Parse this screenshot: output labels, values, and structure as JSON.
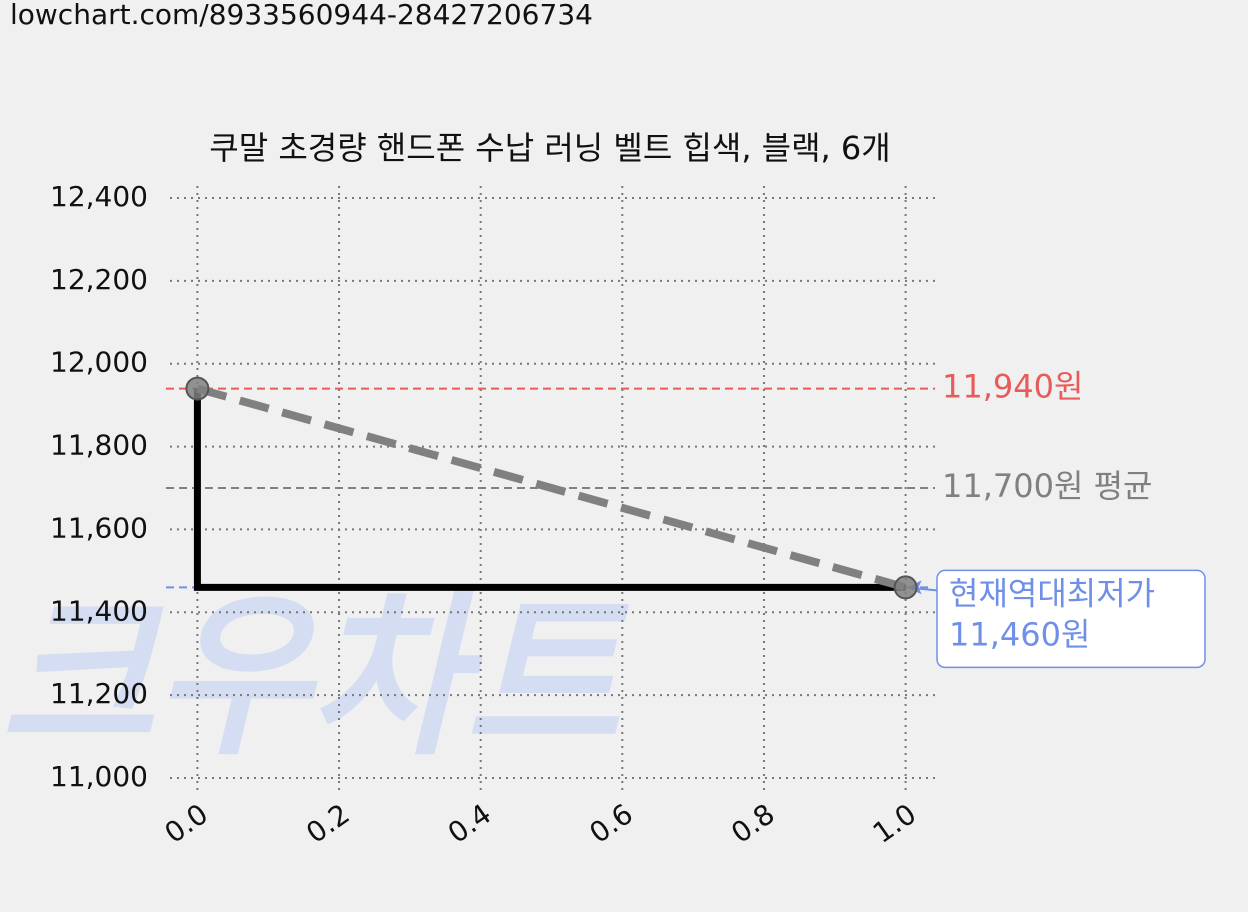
{
  "url": "lowchart.com/8933560944-28427206734",
  "chart_data": {
    "type": "line",
    "title": "쿠말 초경량 핸드폰 수납 러닝 벨트 힙색, 블랙, 6개",
    "watermark": "크우차트",
    "xlim": [
      -0.05,
      1.05
    ],
    "xticks": [
      {
        "value": 0,
        "label": "0.0"
      },
      0.2,
      0.4,
      0.6,
      0.8,
      {
        "value": 1,
        "label": "1.0"
      }
    ],
    "ylim": [
      11000,
      12400
    ],
    "yticks": [
      {
        "value": 11000,
        "label": "11,000"
      },
      {
        "value": 11200,
        "label": "11,200"
      },
      {
        "value": 11400,
        "label": "11,400"
      },
      {
        "value": 11600,
        "label": "11,600"
      },
      {
        "value": 11800,
        "label": "11,800"
      },
      {
        "value": 12000,
        "label": "12,000"
      },
      {
        "value": 12200,
        "label": "12,200"
      },
      {
        "value": 12400,
        "label": "12,400"
      }
    ],
    "grid": true,
    "series": [
      {
        "color": "#000000",
        "style": "solid",
        "markers": false,
        "x": [
          0,
          0,
          1
        ],
        "values": [
          11940,
          11460,
          11460
        ]
      },
      {
        "color": "#808080",
        "style": "dashed",
        "markers": true,
        "x": [
          0,
          1
        ],
        "values": [
          11940,
          11460
        ]
      }
    ],
    "hlines": [
      {
        "value": 11940,
        "color": "#e85b5b",
        "label_lines": [
          "11,940원"
        ],
        "boxed": false
      },
      {
        "value": 11700,
        "color": "#808080",
        "label_lines": [
          "11,700원 평균"
        ],
        "boxed": false
      },
      {
        "value": 11460,
        "color": "#6f8fe8",
        "label_lines": [
          "현재역대최저가",
          "11,460원"
        ],
        "boxed": true
      }
    ]
  }
}
